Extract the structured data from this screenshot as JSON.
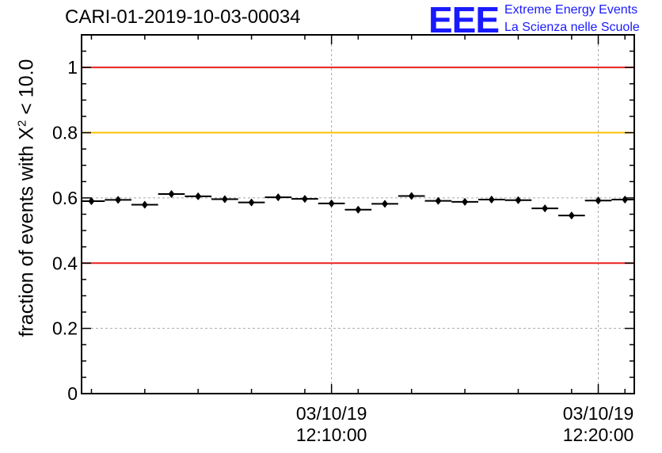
{
  "title": "CARI-01-2019-10-03-00034",
  "logo": {
    "mark": "EEE",
    "line1": "Extreme Energy Events",
    "line2": "La Scienza nelle Scuole"
  },
  "ylabel": {
    "prefix": "fraction of events with ",
    "symbol": "X",
    "sup": "2",
    "suffix": " < 10.0"
  },
  "chart_data": {
    "type": "scatter",
    "ylim": [
      0,
      1.1
    ],
    "grid": true,
    "y_ticks": [
      0,
      0.2,
      0.4,
      0.6,
      0.8,
      1
    ],
    "y_tick_labels": [
      "0",
      "0.2",
      "0.4",
      "0.6",
      "0.8",
      "1"
    ],
    "x_unit": "minutes after 03/10/19 12:00:00",
    "xlim": [
      0.63,
      21.35
    ],
    "x_ticks": [
      {
        "x": 10,
        "line1": "03/10/19",
        "line2": "12:10:00"
      },
      {
        "x": 20,
        "line1": "03/10/19",
        "line2": "12:20:00"
      }
    ],
    "reference_lines": [
      {
        "y": 1.0,
        "color": "#e8211d"
      },
      {
        "y": 0.8,
        "color": "#ffc000"
      },
      {
        "y": 0.4,
        "color": "#e8211d"
      }
    ],
    "series": [
      {
        "marker": "diamond",
        "color": "#000000",
        "bin_width": 1.0,
        "x": [
          1,
          2,
          3,
          4,
          5,
          6,
          7,
          8,
          9,
          10,
          11,
          12,
          13,
          14,
          15,
          16,
          17,
          18,
          19,
          20,
          21
        ],
        "y": [
          0.59,
          0.594,
          0.579,
          0.612,
          0.605,
          0.596,
          0.586,
          0.602,
          0.597,
          0.583,
          0.564,
          0.582,
          0.606,
          0.591,
          0.588,
          0.595,
          0.593,
          0.568,
          0.546,
          0.592,
          0.595
        ]
      }
    ]
  }
}
